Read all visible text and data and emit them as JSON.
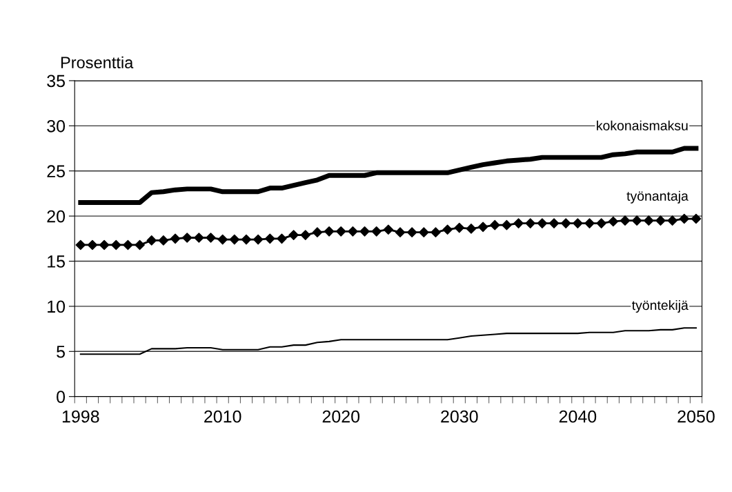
{
  "chart_data": {
    "type": "line",
    "ylabel": "Prosenttia",
    "categories": [
      "1998",
      null,
      null,
      null,
      null,
      null,
      null,
      null,
      null,
      null,
      null,
      null,
      "2010",
      null,
      null,
      null,
      null,
      null,
      null,
      null,
      null,
      null,
      "2020",
      null,
      null,
      null,
      null,
      null,
      null,
      null,
      null,
      null,
      "2030",
      null,
      null,
      null,
      null,
      null,
      null,
      null,
      null,
      null,
      "2040",
      null,
      null,
      null,
      null,
      null,
      null,
      null,
      null,
      null,
      "2050"
    ],
    "series": [
      {
        "name": "kokonaismaksu",
        "color": "#000000",
        "marker": "none",
        "values": [
          21.5,
          21.5,
          21.5,
          21.5,
          21.5,
          21.5,
          22.6,
          22.7,
          22.9,
          23.0,
          23.0,
          23.0,
          22.7,
          22.7,
          22.7,
          22.7,
          23.1,
          23.1,
          23.4,
          23.7,
          24.0,
          24.5,
          24.5,
          24.5,
          24.5,
          24.8,
          24.8,
          24.8,
          24.8,
          24.8,
          24.8,
          24.8,
          25.1,
          25.4,
          25.7,
          25.9,
          26.1,
          26.2,
          26.3,
          26.5,
          26.5,
          26.5,
          26.5,
          26.5,
          26.5,
          26.8,
          26.9,
          27.1,
          27.1,
          27.1,
          27.1,
          27.5,
          27.5
        ]
      },
      {
        "name": "työnantaja",
        "color": "#000000",
        "marker": "diamond",
        "values": [
          16.8,
          16.8,
          16.8,
          16.8,
          16.8,
          16.8,
          17.3,
          17.3,
          17.5,
          17.6,
          17.6,
          17.6,
          17.4,
          17.4,
          17.4,
          17.4,
          17.5,
          17.5,
          17.9,
          17.9,
          18.2,
          18.3,
          18.3,
          18.3,
          18.3,
          18.3,
          18.5,
          18.2,
          18.2,
          18.2,
          18.2,
          18.5,
          18.7,
          18.6,
          18.8,
          19.0,
          19.0,
          19.2,
          19.2,
          19.2,
          19.2,
          19.2,
          19.2,
          19.2,
          19.2,
          19.4,
          19.5,
          19.5,
          19.5,
          19.5,
          19.5,
          19.7,
          19.7
        ]
      },
      {
        "name": "työntekijä",
        "color": "#000000",
        "marker": "none",
        "values": [
          4.7,
          4.7,
          4.7,
          4.7,
          4.7,
          4.7,
          5.3,
          5.3,
          5.3,
          5.4,
          5.4,
          5.4,
          5.2,
          5.2,
          5.2,
          5.2,
          5.5,
          5.5,
          5.7,
          5.7,
          6.0,
          6.1,
          6.3,
          6.3,
          6.3,
          6.3,
          6.3,
          6.3,
          6.3,
          6.3,
          6.3,
          6.3,
          6.5,
          6.7,
          6.8,
          6.9,
          7.0,
          7.0,
          7.0,
          7.0,
          7.0,
          7.0,
          7.0,
          7.1,
          7.1,
          7.1,
          7.3,
          7.3,
          7.3,
          7.4,
          7.4,
          7.6,
          7.6
        ]
      }
    ],
    "ylim": [
      0,
      35
    ],
    "yticks": [
      0,
      5,
      10,
      15,
      20,
      25,
      30,
      35
    ],
    "grid": "y"
  }
}
